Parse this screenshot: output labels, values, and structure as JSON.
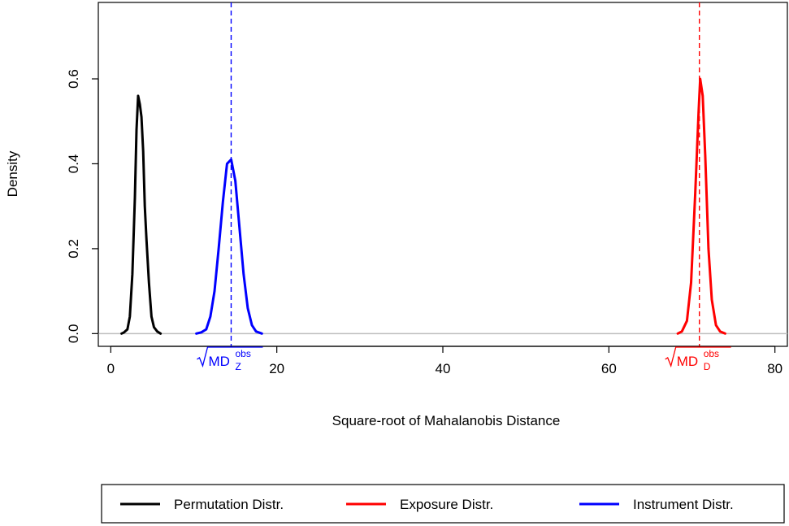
{
  "chart_data": {
    "type": "line",
    "title": "",
    "xlabel": "Square-root of Mahalanobis Distance",
    "ylabel": "Density",
    "xlim": [
      -1.5,
      81.5
    ],
    "ylim": [
      -0.03,
      0.78
    ],
    "xticks": [
      0,
      20,
      40,
      60,
      80
    ],
    "yticks": [
      0.0,
      0.2,
      0.4,
      0.6
    ],
    "ytick_labels": [
      "0.0",
      "0.2",
      "0.4",
      "0.6"
    ],
    "grid": false,
    "legend_position": "bottom",
    "colors": {
      "permutation": "#000000",
      "exposure": "#ff0000",
      "instrument": "#0000ff",
      "baseline": "#bebebe"
    },
    "series": [
      {
        "name": "Permutation Distr.",
        "color": "#000000",
        "x": [
          1.3,
          1.6,
          2.0,
          2.3,
          2.6,
          2.9,
          3.1,
          3.3,
          3.5,
          3.7,
          3.9,
          4.1,
          4.3,
          4.6,
          4.9,
          5.2,
          5.6,
          6.0
        ],
        "y": [
          0.0,
          0.003,
          0.01,
          0.04,
          0.14,
          0.32,
          0.48,
          0.56,
          0.54,
          0.51,
          0.43,
          0.3,
          0.22,
          0.12,
          0.04,
          0.015,
          0.005,
          0.0
        ]
      },
      {
        "name": "Exposure Distr.",
        "color": "#ff0000",
        "x": [
          68.3,
          68.8,
          69.4,
          69.9,
          70.4,
          70.8,
          71.0,
          71.3,
          71.6,
          72.0,
          72.4,
          72.9,
          73.4,
          74.0
        ],
        "y": [
          0.0,
          0.005,
          0.03,
          0.12,
          0.33,
          0.52,
          0.6,
          0.56,
          0.42,
          0.2,
          0.08,
          0.02,
          0.005,
          0.0
        ]
      },
      {
        "name": "Instrument Distr.",
        "color": "#0000ff",
        "x": [
          10.3,
          10.9,
          11.5,
          12.0,
          12.5,
          13.0,
          13.5,
          14.0,
          14.5,
          15.0,
          15.5,
          16.0,
          16.5,
          17.0,
          17.5,
          18.2
        ],
        "y": [
          0.0,
          0.003,
          0.01,
          0.04,
          0.1,
          0.2,
          0.31,
          0.4,
          0.41,
          0.36,
          0.25,
          0.14,
          0.06,
          0.02,
          0.005,
          0.0
        ]
      }
    ],
    "vlines": [
      {
        "x": 14.5,
        "color": "#0000ff",
        "style": "dashed"
      },
      {
        "x": 70.9,
        "color": "#ff0000",
        "style": "dashed"
      }
    ],
    "hline": {
      "y": 0,
      "color": "#bebebe"
    },
    "annotations": [
      {
        "base": "MD",
        "sub": "Z",
        "sup": "obs",
        "x": 14.5,
        "color": "#0000ff"
      },
      {
        "base": "MD",
        "sub": "D",
        "sup": "obs",
        "x": 70.9,
        "color": "#ff0000"
      }
    ]
  }
}
